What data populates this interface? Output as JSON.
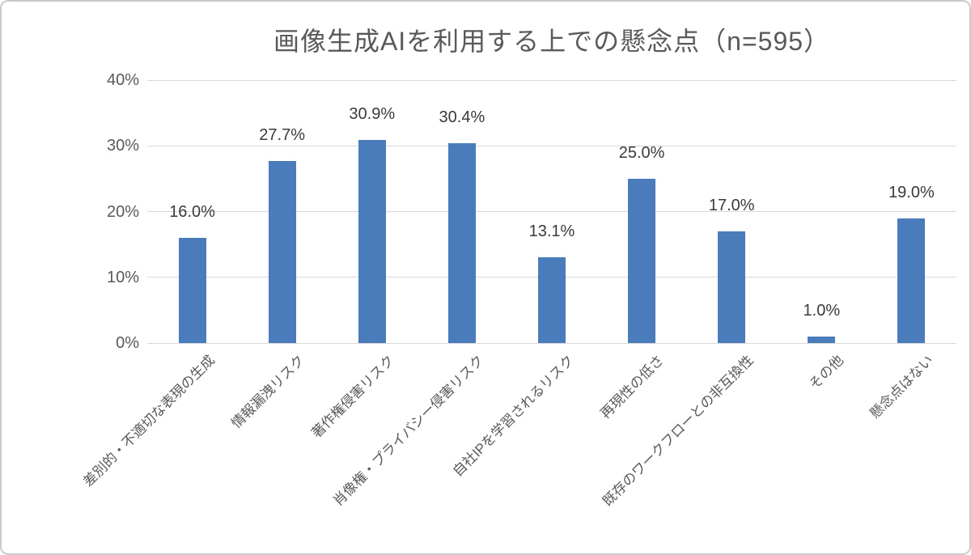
{
  "chart_data": {
    "type": "bar",
    "title": "画像生成AIを利用する上での懸念点（n=595）",
    "categories": [
      "差別的・不適切な表現の生成",
      "情報漏洩リスク",
      "著作権侵害リスク",
      "肖像権・プライバシー侵害リスク",
      "自社IPを学習されるリスク",
      "再現性の低さ",
      "既存のワークフローとの非互換性",
      "その他",
      "懸念点はない"
    ],
    "values": [
      16.0,
      27.7,
      30.9,
      30.4,
      13.1,
      25.0,
      17.0,
      1.0,
      19.0
    ],
    "data_labels": [
      "16.0%",
      "27.7%",
      "30.9%",
      "30.4%",
      "13.1%",
      "25.0%",
      "17.0%",
      "1.0%",
      "19.0%"
    ],
    "xlabel": "",
    "ylabel": "",
    "ylim": [
      0,
      40
    ],
    "y_tick_step": 10,
    "y_tick_labels": [
      "0%",
      "10%",
      "20%",
      "30%",
      "40%"
    ],
    "grid": true,
    "legend": "none",
    "bar_color": "#4a7cbc",
    "title_color": "#595959",
    "axis_label_color": "#595959",
    "value_label_color": "#3a3a3a",
    "gridline_color": "#d9d9d9"
  }
}
